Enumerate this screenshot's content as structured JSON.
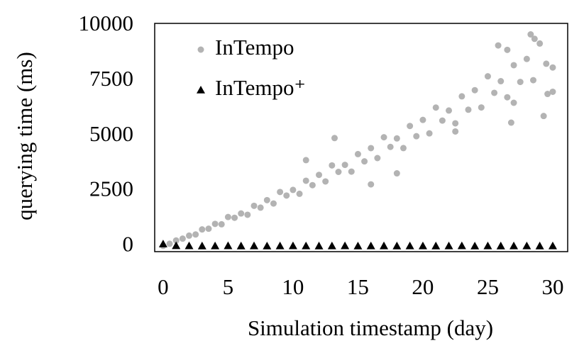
{
  "chart_data": {
    "type": "scatter",
    "xlabel": "Simulation timestamp (day)",
    "ylabel": "querying time (ms)",
    "xlim": [
      -0.65,
      31.15
    ],
    "xticks": [
      0,
      5,
      10,
      15,
      20,
      25,
      30
    ],
    "ylim": [
      -250,
      10100
    ],
    "yticks": [
      0,
      2500,
      5000,
      7500,
      10000
    ],
    "legend": "upper left",
    "series": [
      {
        "name": "InTempo",
        "color": "#b3b3b3",
        "marker": "circle",
        "x": [
          0,
          0.5,
          1,
          1.5,
          2,
          2.5,
          3,
          3.5,
          4,
          4.5,
          5,
          5.5,
          6,
          6.5,
          7,
          7.5,
          8,
          8.5,
          9,
          9.5,
          10,
          10.5,
          11,
          11.5,
          12,
          12.5,
          13,
          13.5,
          14,
          14.5,
          15,
          15.5,
          16,
          16.5,
          17,
          17.5,
          18,
          18.5,
          19,
          19.5,
          20,
          20.5,
          21,
          21.5,
          22,
          22.5,
          23,
          23.5,
          24,
          24.5,
          25,
          25.5,
          26,
          26.5,
          27,
          27.5,
          28,
          28.5,
          29,
          29.5,
          30,
          25.8,
          26.5,
          28.3,
          28.6,
          27,
          29.3,
          26.8,
          30,
          29.6,
          22.5,
          18,
          16,
          11,
          13.2
        ],
        "values": [
          10,
          107,
          255,
          340,
          477,
          529,
          758,
          789,
          1009,
          990,
          1320,
          1286,
          1481,
          1422,
          1828,
          1746,
          2086,
          1932,
          2455,
          2295,
          2550,
          2372,
          2966,
          2765,
          3231,
          2933,
          3661,
          3366,
          3684,
          3380,
          4173,
          3844,
          4444,
          3993,
          4937,
          4499,
          4884,
          4446,
          5448,
          4984,
          5724,
          5112,
          6283,
          5694,
          6149,
          5569,
          6792,
          6185,
          7072,
          6289,
          7700,
          6951,
          7479,
          6750,
          8205,
          7446,
          8488,
          7526,
          9187,
          8270,
          8100,
          9100,
          8900,
          9600,
          9400,
          6500,
          5900,
          5600,
          7000,
          6900,
          5200,
          3300,
          2800,
          3900,
          4900
        ]
      },
      {
        "name": "InTempo⁺",
        "color": "#000000",
        "marker": "triangle",
        "x": [
          0,
          1,
          2,
          3,
          4,
          5,
          6,
          7,
          8,
          9,
          10,
          11,
          12,
          13,
          14,
          15,
          16,
          17,
          18,
          19,
          20,
          21,
          22,
          23,
          24,
          25,
          26,
          27,
          28,
          29,
          30
        ],
        "values": [
          100,
          20,
          15,
          10,
          12,
          18,
          10,
          14,
          9,
          11,
          16,
          13,
          10,
          12,
          15,
          9,
          11,
          14,
          10,
          12,
          13,
          10,
          11,
          15,
          9,
          12,
          10,
          13,
          11,
          10,
          12
        ]
      }
    ]
  }
}
